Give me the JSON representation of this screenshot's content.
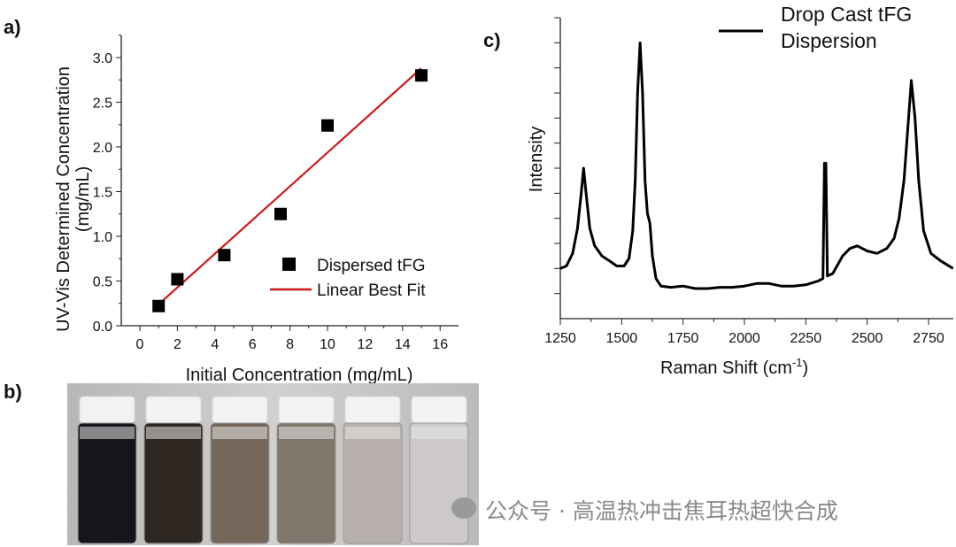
{
  "panel_labels": {
    "a": "a)",
    "b": "b)",
    "c": "c)"
  },
  "watermark": "公众号 · 高温热冲击焦耳热超快合成",
  "chart_data": [
    {
      "type": "scatter",
      "panel": "a",
      "xlabel": "Initial Concentration (mg/mL)",
      "ylabel_line1": "UV-Vis Determined Concentration",
      "ylabel_line2": "(mg/mL)",
      "xlim": [
        -1,
        17
      ],
      "ylim": [
        0,
        3.25
      ],
      "xticks": [
        0,
        2,
        4,
        6,
        8,
        10,
        12,
        14,
        16
      ],
      "xtick_labels": [
        "0",
        "2",
        "4",
        "6",
        "8",
        "10",
        "12",
        "14",
        "16"
      ],
      "yticks": [
        0,
        0.5,
        1.0,
        1.5,
        2.0,
        2.5,
        3.0
      ],
      "ytick_labels": [
        "0.0",
        "0.5",
        "1.0",
        "1.5",
        "2.0",
        "2.5",
        "3.0"
      ],
      "grid": false,
      "legend_position": "bottom-right",
      "series": [
        {
          "name": "Dispersed tFG",
          "kind": "points",
          "color": "#000000",
          "x": [
            1,
            2,
            4.5,
            7.5,
            10,
            15
          ],
          "y": [
            0.22,
            0.52,
            0.79,
            1.25,
            2.24,
            2.8
          ]
        },
        {
          "name": "Linear Best Fit",
          "kind": "line",
          "color": "#d01818",
          "x": [
            1,
            15
          ],
          "y": [
            0.24,
            2.88
          ]
        }
      ]
    },
    {
      "type": "line",
      "panel": "c",
      "xlabel": "Raman Shift (cm",
      "xlabel_sup": "-1",
      "xlabel_end": ")",
      "ylabel": "Intensity",
      "xlim": [
        1250,
        2850
      ],
      "ylim": [
        0,
        12
      ],
      "xticks": [
        1250,
        1500,
        1750,
        2000,
        2250,
        2500,
        2750
      ],
      "xtick_labels": [
        "1250",
        "1500",
        "1750",
        "2000",
        "2250",
        "2500",
        "2750"
      ],
      "grid": false,
      "legend_position": "top-right",
      "series": [
        {
          "name_line1": "Drop Cast tFG",
          "name_line2": "Dispersion",
          "color": "#000000",
          "points": [
            [
              1250,
              2.0
            ],
            [
              1275,
              2.1
            ],
            [
              1300,
              2.6
            ],
            [
              1320,
              3.6
            ],
            [
              1335,
              5.0
            ],
            [
              1345,
              6.0
            ],
            [
              1355,
              5.0
            ],
            [
              1370,
              3.6
            ],
            [
              1390,
              2.9
            ],
            [
              1420,
              2.5
            ],
            [
              1450,
              2.3
            ],
            [
              1480,
              2.1
            ],
            [
              1510,
              2.1
            ],
            [
              1530,
              2.4
            ],
            [
              1545,
              3.5
            ],
            [
              1555,
              5.5
            ],
            [
              1565,
              9.0
            ],
            [
              1575,
              11.0
            ],
            [
              1585,
              9.0
            ],
            [
              1595,
              5.5
            ],
            [
              1605,
              4.2
            ],
            [
              1615,
              3.8
            ],
            [
              1625,
              2.5
            ],
            [
              1640,
              1.6
            ],
            [
              1660,
              1.3
            ],
            [
              1700,
              1.25
            ],
            [
              1750,
              1.3
            ],
            [
              1800,
              1.2
            ],
            [
              1850,
              1.2
            ],
            [
              1900,
              1.25
            ],
            [
              1950,
              1.25
            ],
            [
              2000,
              1.3
            ],
            [
              2050,
              1.4
            ],
            [
              2100,
              1.4
            ],
            [
              2150,
              1.3
            ],
            [
              2200,
              1.3
            ],
            [
              2250,
              1.35
            ],
            [
              2300,
              1.5
            ],
            [
              2320,
              1.6
            ],
            [
              2326,
              6.2
            ],
            [
              2332,
              6.2
            ],
            [
              2338,
              1.7
            ],
            [
              2360,
              1.8
            ],
            [
              2400,
              2.5
            ],
            [
              2430,
              2.8
            ],
            [
              2460,
              2.9
            ],
            [
              2500,
              2.7
            ],
            [
              2540,
              2.6
            ],
            [
              2580,
              2.8
            ],
            [
              2610,
              3.2
            ],
            [
              2630,
              4.0
            ],
            [
              2650,
              5.5
            ],
            [
              2665,
              7.5
            ],
            [
              2680,
              9.5
            ],
            [
              2695,
              8.0
            ],
            [
              2710,
              5.5
            ],
            [
              2730,
              3.5
            ],
            [
              2760,
              2.6
            ],
            [
              2800,
              2.3
            ],
            [
              2850,
              2.0
            ]
          ]
        }
      ]
    }
  ],
  "photo_b": {
    "vial_colors": [
      "#15161c",
      "#2f2822",
      "#75685a",
      "#7f766c",
      "#b8b0ac",
      "#cdc9c9"
    ]
  }
}
